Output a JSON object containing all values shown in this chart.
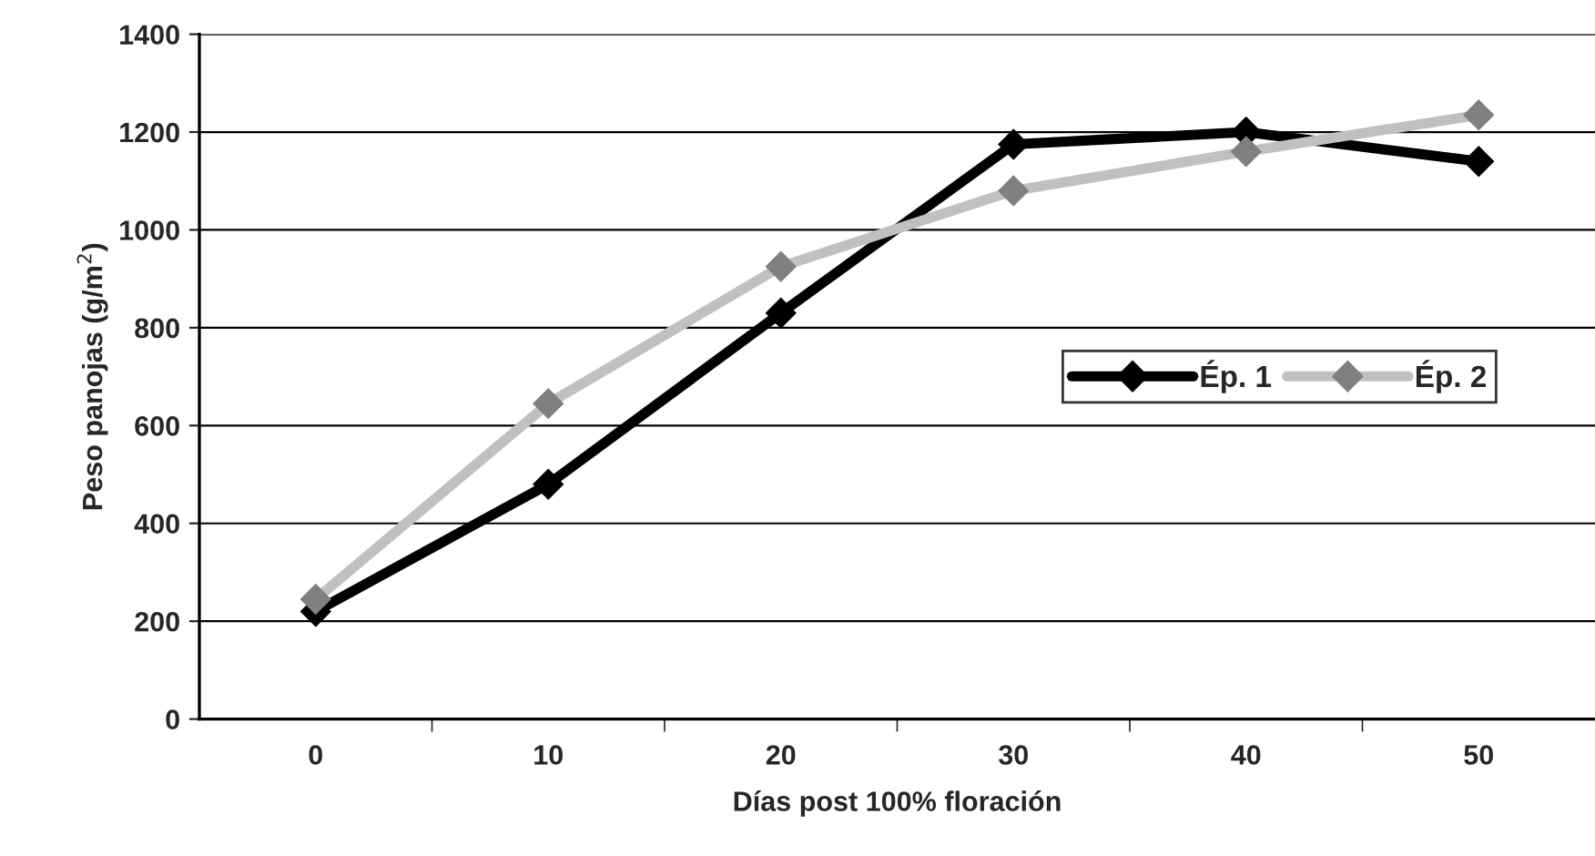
{
  "chart_data": {
    "type": "line",
    "xlabel": "Días post 100% floración",
    "ylabel": "Peso panojas (g/m$^{2}$)",
    "categories": [
      "0",
      "10",
      "20",
      "30",
      "40",
      "50"
    ],
    "series": [
      {
        "name": "Ép. 1",
        "color": "#000000",
        "values": [
          220,
          480,
          830,
          1175,
          1200,
          1140
        ]
      },
      {
        "name": "Ép. 2",
        "color": "#c0c0c0",
        "values": [
          245,
          645,
          925,
          1080,
          1160,
          1235
        ]
      }
    ],
    "ylim": [
      0,
      1400
    ],
    "yticks": [
      0,
      200,
      400,
      600,
      800,
      1000,
      1200,
      1400
    ],
    "grid": "y",
    "legend": "right",
    "marker": "diamond",
    "line_style": "solid"
  }
}
